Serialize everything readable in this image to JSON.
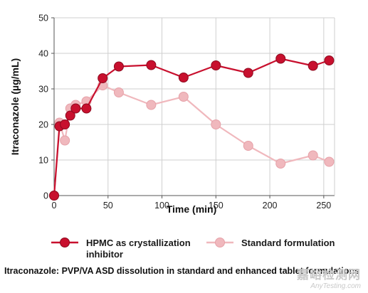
{
  "chart_data": {
    "type": "line",
    "title": "",
    "xlabel": "Time (min)",
    "ylabel": "Itraconazole (µg/mL)",
    "xlim": [
      0,
      260
    ],
    "ylim": [
      0,
      50
    ],
    "x_ticks": [
      0,
      50,
      100,
      150,
      200,
      250
    ],
    "y_ticks": [
      0,
      10,
      20,
      30,
      40,
      50
    ],
    "grid": true,
    "legend_position": "bottom",
    "series": [
      {
        "name": "HPMC as crystallization inhibitor",
        "color": "#c8102e",
        "x": [
          0,
          5,
          10,
          15,
          20,
          30,
          45,
          60,
          90,
          120,
          150,
          180,
          210,
          240,
          255
        ],
        "y": [
          0,
          19.5,
          20,
          22.5,
          24.5,
          24.5,
          33,
          36.3,
          36.7,
          33.2,
          36.6,
          34.5,
          38.5,
          36.5,
          38
        ]
      },
      {
        "name": "Standard formulation",
        "color": "#f0b8bd",
        "x": [
          0,
          5,
          10,
          15,
          20,
          30,
          45,
          60,
          90,
          120,
          150,
          180,
          210,
          240,
          255
        ],
        "y": [
          0,
          20.5,
          15.5,
          24.5,
          25.5,
          26.5,
          31,
          29,
          25.5,
          27.8,
          20,
          14,
          9,
          11.3,
          9.5
        ]
      }
    ]
  },
  "legend": {
    "series_1_line1": "HPMC as crystallization",
    "series_1_line2": "inhibitor",
    "series_2": "Standard formulation"
  },
  "caption": "Itraconazole: PVP/VA ASD dissolution in standard and enhanced tablet formulations",
  "watermark": {
    "line1": "嘉峪检测网",
    "line2": "AnyTesting.com"
  }
}
